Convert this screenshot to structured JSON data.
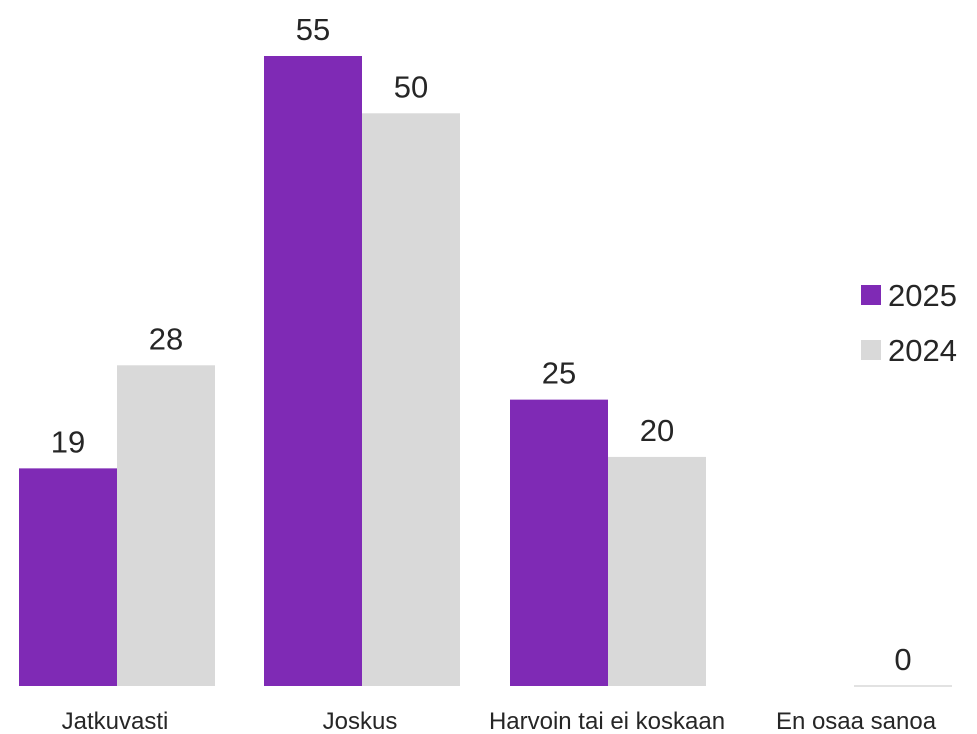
{
  "chart_data": {
    "type": "bar",
    "categories": [
      "Jatkuvasti",
      "Joskus",
      "Harvoin tai ei koskaan",
      "En osaa sanoa"
    ],
    "series": [
      {
        "name": "2025",
        "values": [
          19,
          55,
          25,
          null
        ],
        "color": "#7f2ab5"
      },
      {
        "name": "2024",
        "values": [
          28,
          50,
          20,
          0
        ],
        "color": "#d9d9d9"
      }
    ],
    "data_labels": [
      [
        "19",
        "55",
        "25",
        ""
      ],
      [
        "28",
        "50",
        "20",
        "0"
      ]
    ],
    "legend_position": "right",
    "grid": false,
    "ylim": [
      0,
      55
    ]
  }
}
